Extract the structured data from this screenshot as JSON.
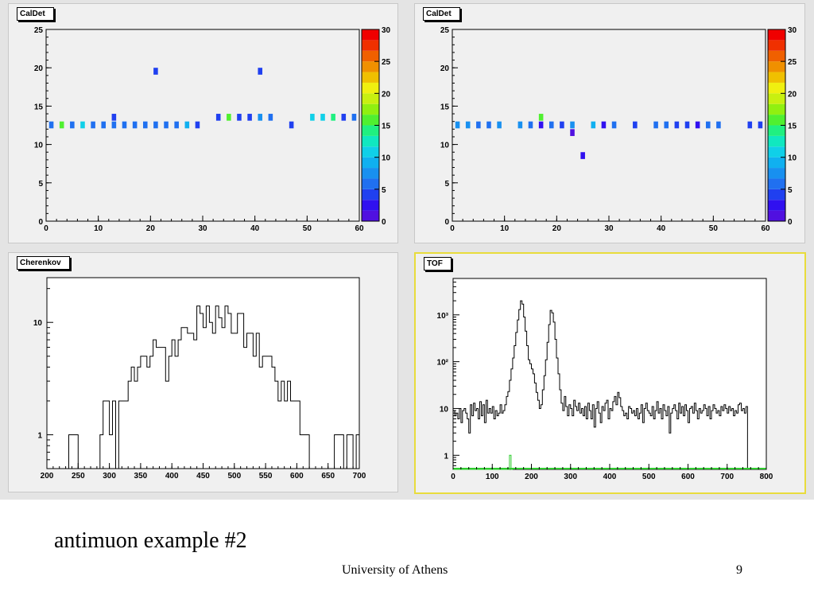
{
  "slide": {
    "caption": "antimuon example #2",
    "footer_org": "University of Athens",
    "page_number": "9"
  },
  "chart_data": [
    {
      "type": "heatmap",
      "title": "CalDet",
      "xlim": [
        0,
        60
      ],
      "ylim": [
        0,
        25
      ],
      "xticks": [
        0,
        10,
        20,
        30,
        40,
        50,
        60
      ],
      "yticks": [
        0,
        5,
        10,
        15,
        20,
        25
      ],
      "zlim": [
        0,
        30
      ],
      "zticks": [
        0,
        5,
        10,
        15,
        20,
        25,
        30
      ],
      "palette": [
        "#5010e0",
        "#3010f0",
        "#2040f0",
        "#2070f0",
        "#1890f0",
        "#10b0f0",
        "#10d0e8",
        "#10e8c0",
        "#20f080",
        "#50f030",
        "#90f010",
        "#c8f010",
        "#f0f010",
        "#f0c000",
        "#f09000",
        "#f06000",
        "#f03000",
        "#f00000"
      ],
      "cells": [
        {
          "x": 1,
          "y": 12.5,
          "z": 6
        },
        {
          "x": 3,
          "y": 12.5,
          "z": 15
        },
        {
          "x": 5,
          "y": 12.5,
          "z": 6
        },
        {
          "x": 7,
          "y": 12.5,
          "z": 11
        },
        {
          "x": 9,
          "y": 12.5,
          "z": 5
        },
        {
          "x": 11,
          "y": 12.5,
          "z": 5
        },
        {
          "x": 13,
          "y": 12.5,
          "z": 5
        },
        {
          "x": 13,
          "y": 13.5,
          "z": 4
        },
        {
          "x": 15,
          "y": 12.5,
          "z": 5
        },
        {
          "x": 17,
          "y": 12.5,
          "z": 5
        },
        {
          "x": 19,
          "y": 12.5,
          "z": 5
        },
        {
          "x": 21,
          "y": 12.5,
          "z": 6
        },
        {
          "x": 21,
          "y": 19.5,
          "z": 4
        },
        {
          "x": 23,
          "y": 12.5,
          "z": 6
        },
        {
          "x": 25,
          "y": 12.5,
          "z": 5
        },
        {
          "x": 27,
          "y": 12.5,
          "z": 9
        },
        {
          "x": 29,
          "y": 12.5,
          "z": 4
        },
        {
          "x": 33,
          "y": 13.5,
          "z": 4
        },
        {
          "x": 35,
          "y": 13.5,
          "z": 15
        },
        {
          "x": 37,
          "y": 13.5,
          "z": 4
        },
        {
          "x": 39,
          "y": 13.5,
          "z": 4
        },
        {
          "x": 41,
          "y": 13.5,
          "z": 7
        },
        {
          "x": 41,
          "y": 19.5,
          "z": 4
        },
        {
          "x": 43,
          "y": 13.5,
          "z": 5
        },
        {
          "x": 47,
          "y": 12.5,
          "z": 4
        },
        {
          "x": 51,
          "y": 13.5,
          "z": 10
        },
        {
          "x": 53,
          "y": 13.5,
          "z": 11
        },
        {
          "x": 55,
          "y": 13.5,
          "z": 14
        },
        {
          "x": 57,
          "y": 13.5,
          "z": 4
        },
        {
          "x": 59,
          "y": 13.5,
          "z": 5
        }
      ]
    },
    {
      "type": "heatmap",
      "title": "CalDet",
      "xlim": [
        0,
        60
      ],
      "ylim": [
        0,
        25
      ],
      "xticks": [
        0,
        10,
        20,
        30,
        40,
        50,
        60
      ],
      "yticks": [
        0,
        5,
        10,
        15,
        20,
        25
      ],
      "zlim": [
        0,
        30
      ],
      "zticks": [
        0,
        5,
        10,
        15,
        20,
        25,
        30
      ],
      "cells": [
        {
          "x": 1,
          "y": 12.5,
          "z": 7
        },
        {
          "x": 3,
          "y": 12.5,
          "z": 7
        },
        {
          "x": 5,
          "y": 12.5,
          "z": 6
        },
        {
          "x": 7,
          "y": 12.5,
          "z": 6
        },
        {
          "x": 9,
          "y": 12.5,
          "z": 7
        },
        {
          "x": 13,
          "y": 12.5,
          "z": 7
        },
        {
          "x": 15,
          "y": 12.5,
          "z": 6
        },
        {
          "x": 17,
          "y": 12.5,
          "z": 2
        },
        {
          "x": 17,
          "y": 13.5,
          "z": 15
        },
        {
          "x": 19,
          "y": 12.5,
          "z": 5
        },
        {
          "x": 21,
          "y": 12.5,
          "z": 4
        },
        {
          "x": 23,
          "y": 12.5,
          "z": 7
        },
        {
          "x": 23,
          "y": 11.5,
          "z": 1
        },
        {
          "x": 25,
          "y": 8.5,
          "z": 3
        },
        {
          "x": 27,
          "y": 12.5,
          "z": 9
        },
        {
          "x": 29,
          "y": 12.5,
          "z": 2
        },
        {
          "x": 31,
          "y": 12.5,
          "z": 5
        },
        {
          "x": 35,
          "y": 12.5,
          "z": 4
        },
        {
          "x": 39,
          "y": 12.5,
          "z": 5
        },
        {
          "x": 41,
          "y": 12.5,
          "z": 5
        },
        {
          "x": 43,
          "y": 12.5,
          "z": 4
        },
        {
          "x": 45,
          "y": 12.5,
          "z": 4
        },
        {
          "x": 47,
          "y": 12.5,
          "z": 2
        },
        {
          "x": 49,
          "y": 12.5,
          "z": 6
        },
        {
          "x": 51,
          "y": 12.5,
          "z": 6
        },
        {
          "x": 57,
          "y": 12.5,
          "z": 4
        },
        {
          "x": 59,
          "y": 12.5,
          "z": 4
        }
      ]
    },
    {
      "type": "bar",
      "title": "Cherenkov",
      "xlim": [
        200,
        700
      ],
      "xticks": [
        200,
        250,
        300,
        350,
        400,
        450,
        500,
        550,
        600,
        650,
        700
      ],
      "yscale": "log",
      "ylim": [
        0.5,
        25
      ],
      "yticks": [
        1,
        10
      ],
      "bin_width": 5,
      "bin_start": 200,
      "values": [
        0,
        0,
        0,
        0,
        0,
        0,
        0,
        1,
        1,
        1,
        0,
        0,
        0,
        0,
        0,
        0,
        0,
        1,
        2,
        2,
        1,
        2,
        0,
        2,
        2,
        2,
        3,
        4,
        3,
        4,
        5,
        5,
        4,
        5,
        7,
        6,
        6,
        6,
        3,
        5,
        7,
        5,
        7,
        9,
        9,
        8,
        8,
        7,
        14,
        12,
        9,
        14,
        10,
        8,
        14,
        11,
        9,
        14,
        12,
        8,
        8,
        12,
        12,
        6,
        8,
        8,
        5,
        8,
        4,
        5,
        5,
        5,
        4,
        3,
        2,
        3,
        2,
        3,
        2,
        2,
        2,
        1,
        1,
        1,
        0,
        0,
        0,
        0,
        0,
        0,
        0,
        0,
        1,
        1,
        1,
        0,
        1,
        1,
        0,
        1
      ]
    },
    {
      "type": "bar",
      "title": "TOF",
      "xlim": [
        0,
        800
      ],
      "xticks": [
        0,
        100,
        200,
        300,
        400,
        500,
        600,
        700,
        800
      ],
      "yscale": "log",
      "ylim": [
        0.5,
        6000
      ],
      "yticks": [
        1,
        10,
        100,
        1000
      ],
      "ytick_labels": [
        "1",
        "10",
        "10²",
        "10³"
      ],
      "series": [
        {
          "color": "#000000",
          "bin_width": 4,
          "bin_start": 0,
          "values": [
            9,
            7,
            8,
            6,
            10,
            5,
            9,
            10,
            8,
            6,
            3,
            12,
            7,
            13,
            9,
            10,
            6,
            14,
            7,
            12,
            5,
            15,
            8,
            10,
            8,
            11,
            6,
            9,
            7,
            8,
            12,
            8,
            9,
            12,
            18,
            23,
            40,
            70,
            120,
            220,
            420,
            780,
            1300,
            2000,
            1700,
            900,
            450,
            220,
            110,
            90,
            70,
            55,
            35,
            22,
            15,
            10,
            12,
            25,
            50,
            110,
            260,
            620,
            1250,
            1100,
            700,
            300,
            120,
            55,
            25,
            13,
            9,
            18,
            11,
            7,
            12,
            10,
            7,
            15,
            11,
            9,
            13,
            8,
            10,
            7,
            11,
            6,
            13,
            9,
            6,
            12,
            4,
            10,
            14,
            8,
            5,
            11,
            9,
            13,
            15,
            6,
            10,
            9,
            14,
            18,
            12,
            22,
            17,
            11,
            9,
            7,
            8,
            6,
            11,
            10,
            8,
            9,
            7,
            10,
            6,
            8,
            12,
            5,
            10,
            13,
            9,
            8,
            7,
            11,
            6,
            9,
            14,
            8,
            10,
            6,
            12,
            9,
            7,
            11,
            3,
            8,
            10,
            12,
            9,
            6,
            13,
            8,
            11,
            7,
            12,
            9,
            5,
            10,
            11,
            8,
            13,
            9,
            6,
            10,
            8,
            9,
            12,
            10,
            7,
            11,
            6,
            9,
            12,
            10,
            8,
            9,
            7,
            11,
            9,
            12,
            10,
            8,
            11,
            9,
            10,
            7,
            9,
            8,
            12,
            13,
            9,
            10,
            8,
            11
          ]
        },
        {
          "color": "#2ecc2e",
          "bin_width": 4,
          "bin_start": 0,
          "values": [
            0,
            0,
            0,
            0,
            0,
            0,
            0,
            0,
            0,
            0,
            0,
            0,
            0,
            0,
            0,
            0,
            0,
            0,
            0,
            0,
            0,
            0,
            0,
            0,
            0,
            0,
            0,
            0,
            0,
            0,
            0,
            0,
            0,
            0,
            0,
            0,
            1,
            0
          ]
        }
      ]
    }
  ]
}
